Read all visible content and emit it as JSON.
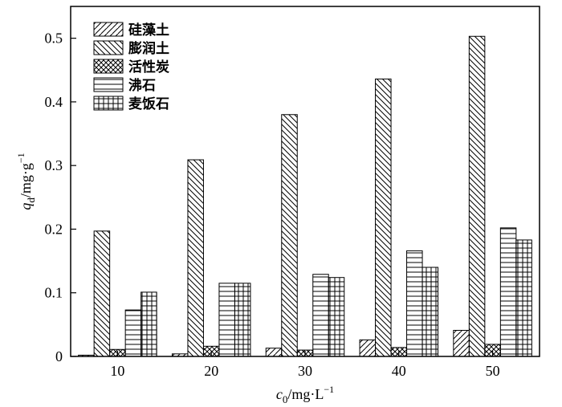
{
  "chart_data": {
    "type": "bar",
    "categories": [
      "10",
      "20",
      "30",
      "40",
      "50"
    ],
    "series": [
      {
        "name": "硅藻土",
        "values": [
          0.002,
          0.004,
          0.013,
          0.026,
          0.041
        ],
        "pattern": "diag-up"
      },
      {
        "name": "膨润土",
        "values": [
          0.197,
          0.309,
          0.38,
          0.436,
          0.503
        ],
        "pattern": "diag-down"
      },
      {
        "name": "活性炭",
        "values": [
          0.011,
          0.016,
          0.01,
          0.014,
          0.019
        ],
        "pattern": "crosshatch"
      },
      {
        "name": "沸石",
        "values": [
          0.073,
          0.115,
          0.129,
          0.166,
          0.202
        ],
        "pattern": "horizontal"
      },
      {
        "name": "麦饭石",
        "values": [
          0.101,
          0.115,
          0.124,
          0.14,
          0.183
        ],
        "pattern": "grid"
      }
    ],
    "yticks": [
      "0",
      "0.1",
      "0.2",
      "0.3",
      "0.4",
      "0.5"
    ],
    "ylim": [
      0,
      0.55
    ],
    "xlabel": {
      "main": "c",
      "sub": "0",
      "rest": "/mg·L",
      "sup": "−1"
    },
    "ylabel": {
      "main": "q",
      "sub": "d",
      "rest": "/mg·g",
      "sup": "−1"
    },
    "grid": false,
    "legend_position": "top-left"
  }
}
